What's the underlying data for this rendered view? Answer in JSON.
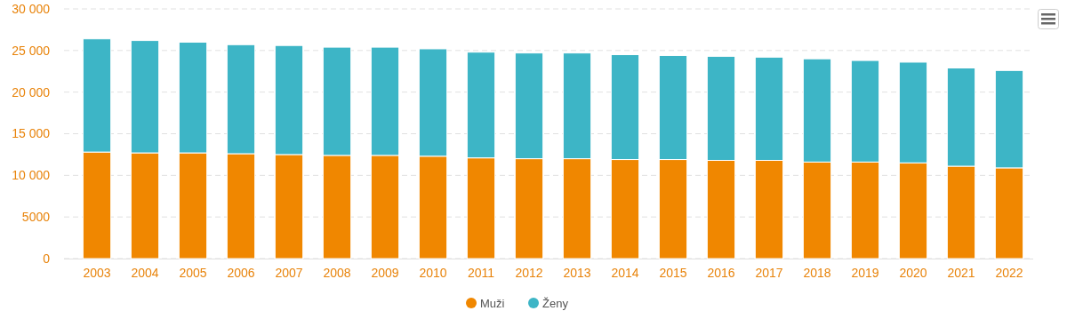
{
  "chart_data": {
    "type": "bar",
    "stacked": true,
    "categories": [
      "2003",
      "2004",
      "2005",
      "2006",
      "2007",
      "2008",
      "2009",
      "2010",
      "2011",
      "2012",
      "2013",
      "2014",
      "2015",
      "2016",
      "2017",
      "2018",
      "2019",
      "2020",
      "2021",
      "2022"
    ],
    "series": [
      {
        "name": "Muži",
        "color": "#f08700",
        "values": [
          12800,
          12700,
          12700,
          12600,
          12500,
          12400,
          12400,
          12300,
          12100,
          12000,
          12000,
          11900,
          11900,
          11800,
          11800,
          11600,
          11600,
          11500,
          11100,
          10900
        ]
      },
      {
        "name": "Ženy",
        "color": "#3db5c6",
        "values": [
          13600,
          13500,
          13300,
          13100,
          13100,
          13000,
          13000,
          12900,
          12700,
          12700,
          12700,
          12600,
          12500,
          12500,
          12400,
          12400,
          12200,
          12100,
          11800,
          11700
        ]
      }
    ],
    "ylim": [
      0,
      30000
    ],
    "yticks": [
      0,
      5000,
      {
        "value": 10000,
        "label": "10 000"
      },
      {
        "value": 15000,
        "label": "15 000"
      },
      {
        "value": 20000,
        "label": "20 000"
      },
      {
        "value": 25000,
        "label": "25 000"
      },
      {
        "value": 30000,
        "label": "30 000"
      }
    ],
    "grid": "y",
    "legend": "bottom"
  }
}
